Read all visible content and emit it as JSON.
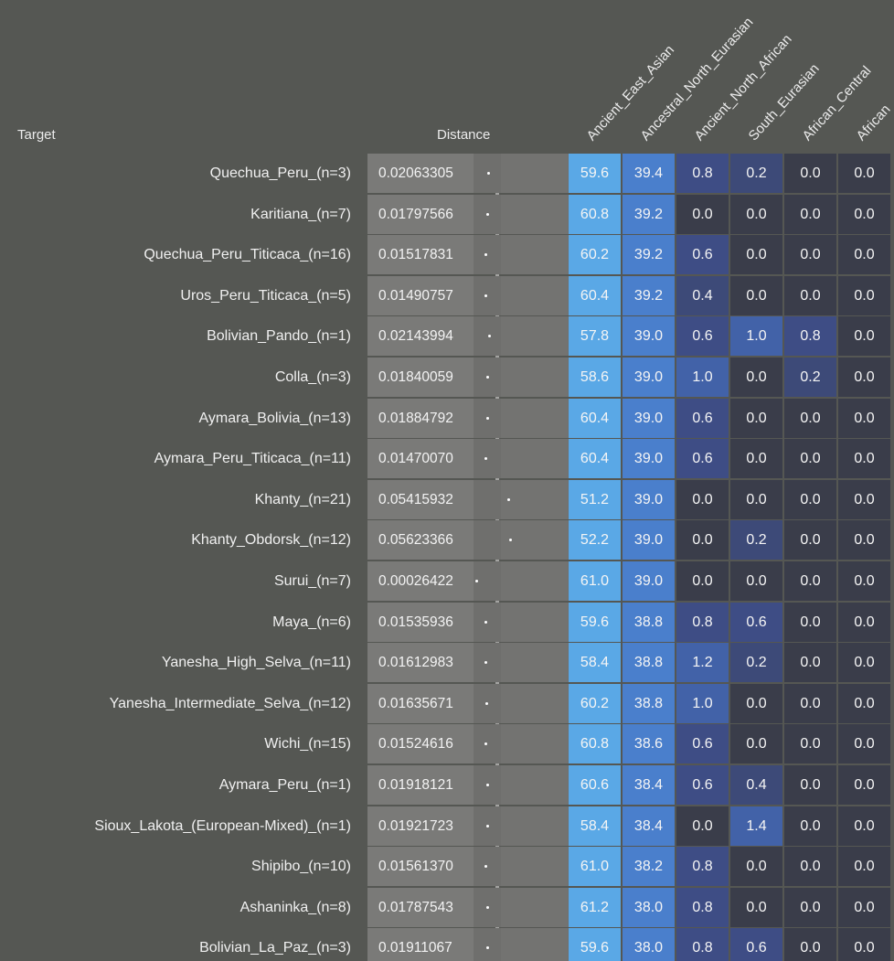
{
  "headers": {
    "target": "Target",
    "distance": "Distance",
    "components": [
      "Ancient_East_Asian",
      "Ancestral_North_Eurasian",
      "Ancient_North_African",
      "South_Eurasian",
      "African_Central",
      "African"
    ]
  },
  "colors": {
    "background": "#555753",
    "distance_cell": "#7a7a78",
    "scale": [
      "#3a3d4a",
      "#3d4a78",
      "#3e4d85",
      "#4262a8",
      "#4a7fcc",
      "#5aa8e6"
    ]
  },
  "rows": [
    {
      "target": "Quechua_Peru_(n=3)",
      "distance": "0.02063305",
      "values": [
        "59.6",
        "39.4",
        "0.8",
        "0.2",
        "0.0",
        "0.0"
      ]
    },
    {
      "target": "Karitiana_(n=7)",
      "distance": "0.01797566",
      "values": [
        "60.8",
        "39.2",
        "0.0",
        "0.0",
        "0.0",
        "0.0"
      ]
    },
    {
      "target": "Quechua_Peru_Titicaca_(n=16)",
      "distance": "0.01517831",
      "values": [
        "60.2",
        "39.2",
        "0.6",
        "0.0",
        "0.0",
        "0.0"
      ]
    },
    {
      "target": "Uros_Peru_Titicaca_(n=5)",
      "distance": "0.01490757",
      "values": [
        "60.4",
        "39.2",
        "0.4",
        "0.0",
        "0.0",
        "0.0"
      ]
    },
    {
      "target": "Bolivian_Pando_(n=1)",
      "distance": "0.02143994",
      "values": [
        "57.8",
        "39.0",
        "0.6",
        "1.0",
        "0.8",
        "0.0"
      ]
    },
    {
      "target": "Colla_(n=3)",
      "distance": "0.01840059",
      "values": [
        "58.6",
        "39.0",
        "1.0",
        "0.0",
        "0.2",
        "0.0"
      ]
    },
    {
      "target": "Aymara_Bolivia_(n=13)",
      "distance": "0.01884792",
      "values": [
        "60.4",
        "39.0",
        "0.6",
        "0.0",
        "0.0",
        "0.0"
      ]
    },
    {
      "target": "Aymara_Peru_Titicaca_(n=11)",
      "distance": "0.01470070",
      "values": [
        "60.4",
        "39.0",
        "0.6",
        "0.0",
        "0.0",
        "0.0"
      ]
    },
    {
      "target": "Khanty_(n=21)",
      "distance": "0.05415932",
      "values": [
        "51.2",
        "39.0",
        "0.0",
        "0.0",
        "0.0",
        "0.0"
      ]
    },
    {
      "target": "Khanty_Obdorsk_(n=12)",
      "distance": "0.05623366",
      "values": [
        "52.2",
        "39.0",
        "0.0",
        "0.2",
        "0.0",
        "0.0"
      ]
    },
    {
      "target": "Surui_(n=7)",
      "distance": "0.00026422",
      "values": [
        "61.0",
        "39.0",
        "0.0",
        "0.0",
        "0.0",
        "0.0"
      ]
    },
    {
      "target": "Maya_(n=6)",
      "distance": "0.01535936",
      "values": [
        "59.6",
        "38.8",
        "0.8",
        "0.6",
        "0.0",
        "0.0"
      ]
    },
    {
      "target": "Yanesha_High_Selva_(n=11)",
      "distance": "0.01612983",
      "values": [
        "58.4",
        "38.8",
        "1.2",
        "0.2",
        "0.0",
        "0.0"
      ]
    },
    {
      "target": "Yanesha_Intermediate_Selva_(n=12)",
      "distance": "0.01635671",
      "values": [
        "60.2",
        "38.8",
        "1.0",
        "0.0",
        "0.0",
        "0.0"
      ]
    },
    {
      "target": "Wichi_(n=15)",
      "distance": "0.01524616",
      "values": [
        "60.8",
        "38.6",
        "0.6",
        "0.0",
        "0.0",
        "0.0"
      ]
    },
    {
      "target": "Aymara_Peru_(n=1)",
      "distance": "0.01918121",
      "values": [
        "60.6",
        "38.4",
        "0.6",
        "0.4",
        "0.0",
        "0.0"
      ]
    },
    {
      "target": "Sioux_Lakota_(European-Mixed)_(n=1)",
      "distance": "0.01921723",
      "values": [
        "58.4",
        "38.4",
        "0.0",
        "1.4",
        "0.0",
        "0.0"
      ]
    },
    {
      "target": "Shipibo_(n=10)",
      "distance": "0.01561370",
      "values": [
        "61.0",
        "38.2",
        "0.8",
        "0.0",
        "0.0",
        "0.0"
      ]
    },
    {
      "target": "Ashaninka_(n=8)",
      "distance": "0.01787543",
      "values": [
        "61.2",
        "38.0",
        "0.8",
        "0.0",
        "0.0",
        "0.0"
      ]
    },
    {
      "target": "Bolivian_La_Paz_(n=3)",
      "distance": "0.01911067",
      "values": [
        "59.6",
        "38.0",
        "0.8",
        "0.6",
        "0.0",
        "0.0"
      ]
    }
  ]
}
